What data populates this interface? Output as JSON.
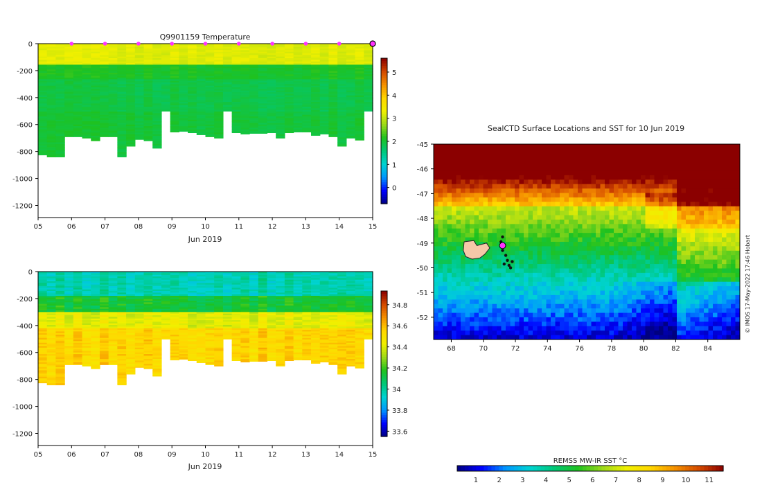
{
  "chart_data": [
    {
      "id": "temperature-section",
      "type": "heatmap",
      "title": "Q9901159  Temperature",
      "xlabel": "Jun 2019",
      "ylabel": "",
      "x_tick_labels": [
        "05",
        "06",
        "07",
        "08",
        "09",
        "10",
        "11",
        "12",
        "13",
        "14",
        "15"
      ],
      "x_range_days": [
        5,
        15
      ],
      "y_ticks": [
        0,
        -200,
        -400,
        -600,
        -800,
        -1000,
        -1200
      ],
      "y_range": [
        -1290,
        0
      ],
      "colorbar": {
        "ticks": [
          0,
          1,
          2,
          3,
          4,
          5
        ],
        "range": [
          -0.7,
          5.6
        ],
        "colors": [
          "#00007f",
          "#0000ff",
          "#0096ff",
          "#00d3d3",
          "#00c878",
          "#1fc21f",
          "#9bd91a",
          "#f0f000",
          "#ffd700",
          "#f59000",
          "#d44a00",
          "#8b0000"
        ]
      },
      "profile_markers_days": [
        6,
        7,
        8,
        9,
        10,
        11,
        12,
        13,
        14,
        15
      ],
      "profile_max_depths": [
        -825,
        -840,
        -840,
        -690,
        -690,
        -700,
        -720,
        -690,
        -690,
        -840,
        -760,
        -710,
        -720,
        -775,
        -500,
        -655,
        -650,
        -660,
        -675,
        -690,
        -700,
        -500,
        -660,
        -670,
        -665,
        -665,
        -660,
        -700,
        -660,
        -655,
        -655,
        -680,
        -670,
        -690,
        -760,
        -700,
        -715,
        -500
      ],
      "layers": [
        {
          "depth": [
            0,
            -150
          ],
          "value": 3.2
        },
        {
          "depth": [
            -150,
            -260
          ],
          "value": 2.1
        },
        {
          "depth": [
            -260,
            -500
          ],
          "value": 1.9
        },
        {
          "depth": [
            -500,
            -850
          ],
          "value": 2.0
        }
      ]
    },
    {
      "id": "salinity-section",
      "type": "heatmap",
      "title": "",
      "xlabel": "Jun 2019",
      "ylabel": "",
      "x_tick_labels": [
        "05",
        "06",
        "07",
        "08",
        "09",
        "10",
        "11",
        "12",
        "13",
        "14",
        "15"
      ],
      "x_range_days": [
        5,
        15
      ],
      "y_ticks": [
        0,
        -200,
        -400,
        -600,
        -800,
        -1000,
        -1200
      ],
      "y_range": [
        -1290,
        0
      ],
      "colorbar": {
        "ticks": [
          33.6,
          33.8,
          34,
          34.2,
          34.4,
          34.6,
          34.8
        ],
        "range": [
          33.55,
          34.93
        ],
        "colors": [
          "#00007f",
          "#0000ff",
          "#0096ff",
          "#00d3d3",
          "#00c878",
          "#1fc21f",
          "#9bd91a",
          "#f0f000",
          "#ffd700",
          "#f59000",
          "#d44a00",
          "#8b0000"
        ]
      },
      "profile_max_depths": [
        -825,
        -840,
        -840,
        -690,
        -690,
        -700,
        -720,
        -690,
        -690,
        -840,
        -760,
        -710,
        -720,
        -775,
        -500,
        -655,
        -650,
        -660,
        -675,
        -690,
        -700,
        -500,
        -660,
        -670,
        -665,
        -665,
        -660,
        -700,
        -660,
        -655,
        -655,
        -680,
        -670,
        -690,
        -760,
        -700,
        -715,
        -500
      ],
      "layers": [
        {
          "depth": [
            0,
            -170
          ],
          "value": 33.98
        },
        {
          "depth": [
            -170,
            -300
          ],
          "value": 34.15
        },
        {
          "depth": [
            -300,
            -420
          ],
          "value": 34.42
        },
        {
          "depth": [
            -420,
            -850
          ],
          "value": 34.55
        }
      ]
    },
    {
      "id": "sst-map",
      "type": "heatmap",
      "title": "SealCTD Surface Locations and SST for 10 Jun 2019",
      "xlabel": "",
      "ylabel": "",
      "x_ticks": [
        68,
        70,
        72,
        74,
        76,
        78,
        80,
        82,
        84
      ],
      "x_range": [
        66.9,
        86.0
      ],
      "y_ticks": [
        -45,
        -46,
        -47,
        -48,
        -49,
        -50,
        -51,
        -52
      ],
      "y_range": [
        -52.9,
        -45.0
      ],
      "colorbar": {
        "label": "REMSS MW-IR SST °C",
        "ticks": [
          1,
          2,
          3,
          4,
          5,
          6,
          7,
          8,
          9,
          10,
          11
        ],
        "range": [
          0.2,
          11.6
        ],
        "colors": [
          "#00007f",
          "#0000ff",
          "#0096ff",
          "#00d3d3",
          "#00c878",
          "#1fc21f",
          "#9bd91a",
          "#f0f000",
          "#ffd700",
          "#f59000",
          "#d44a00",
          "#8b0000"
        ]
      },
      "seal_track_lonlat": [
        [
          71.2,
          -48.75
        ],
        [
          71.1,
          -48.95
        ],
        [
          71.3,
          -49.1
        ],
        [
          71.2,
          -49.3
        ],
        [
          71.4,
          -49.5
        ],
        [
          71.5,
          -49.7
        ],
        [
          71.3,
          -49.85
        ],
        [
          71.6,
          -49.9
        ],
        [
          71.8,
          -49.75
        ],
        [
          71.7,
          -50.0
        ]
      ],
      "seal_position_lonlat": [
        71.2,
        -49.1
      ],
      "island_outline_lonlat": [
        [
          68.8,
          -48.95
        ],
        [
          69.4,
          -48.9
        ],
        [
          69.6,
          -49.1
        ],
        [
          70.2,
          -49.0
        ],
        [
          70.4,
          -49.2
        ],
        [
          70.1,
          -49.45
        ],
        [
          69.8,
          -49.6
        ],
        [
          69.3,
          -49.65
        ],
        [
          68.9,
          -49.55
        ],
        [
          68.75,
          -49.3
        ]
      ],
      "annotation": "© IMOS 17-May-2022 17:46 Hobart"
    }
  ]
}
